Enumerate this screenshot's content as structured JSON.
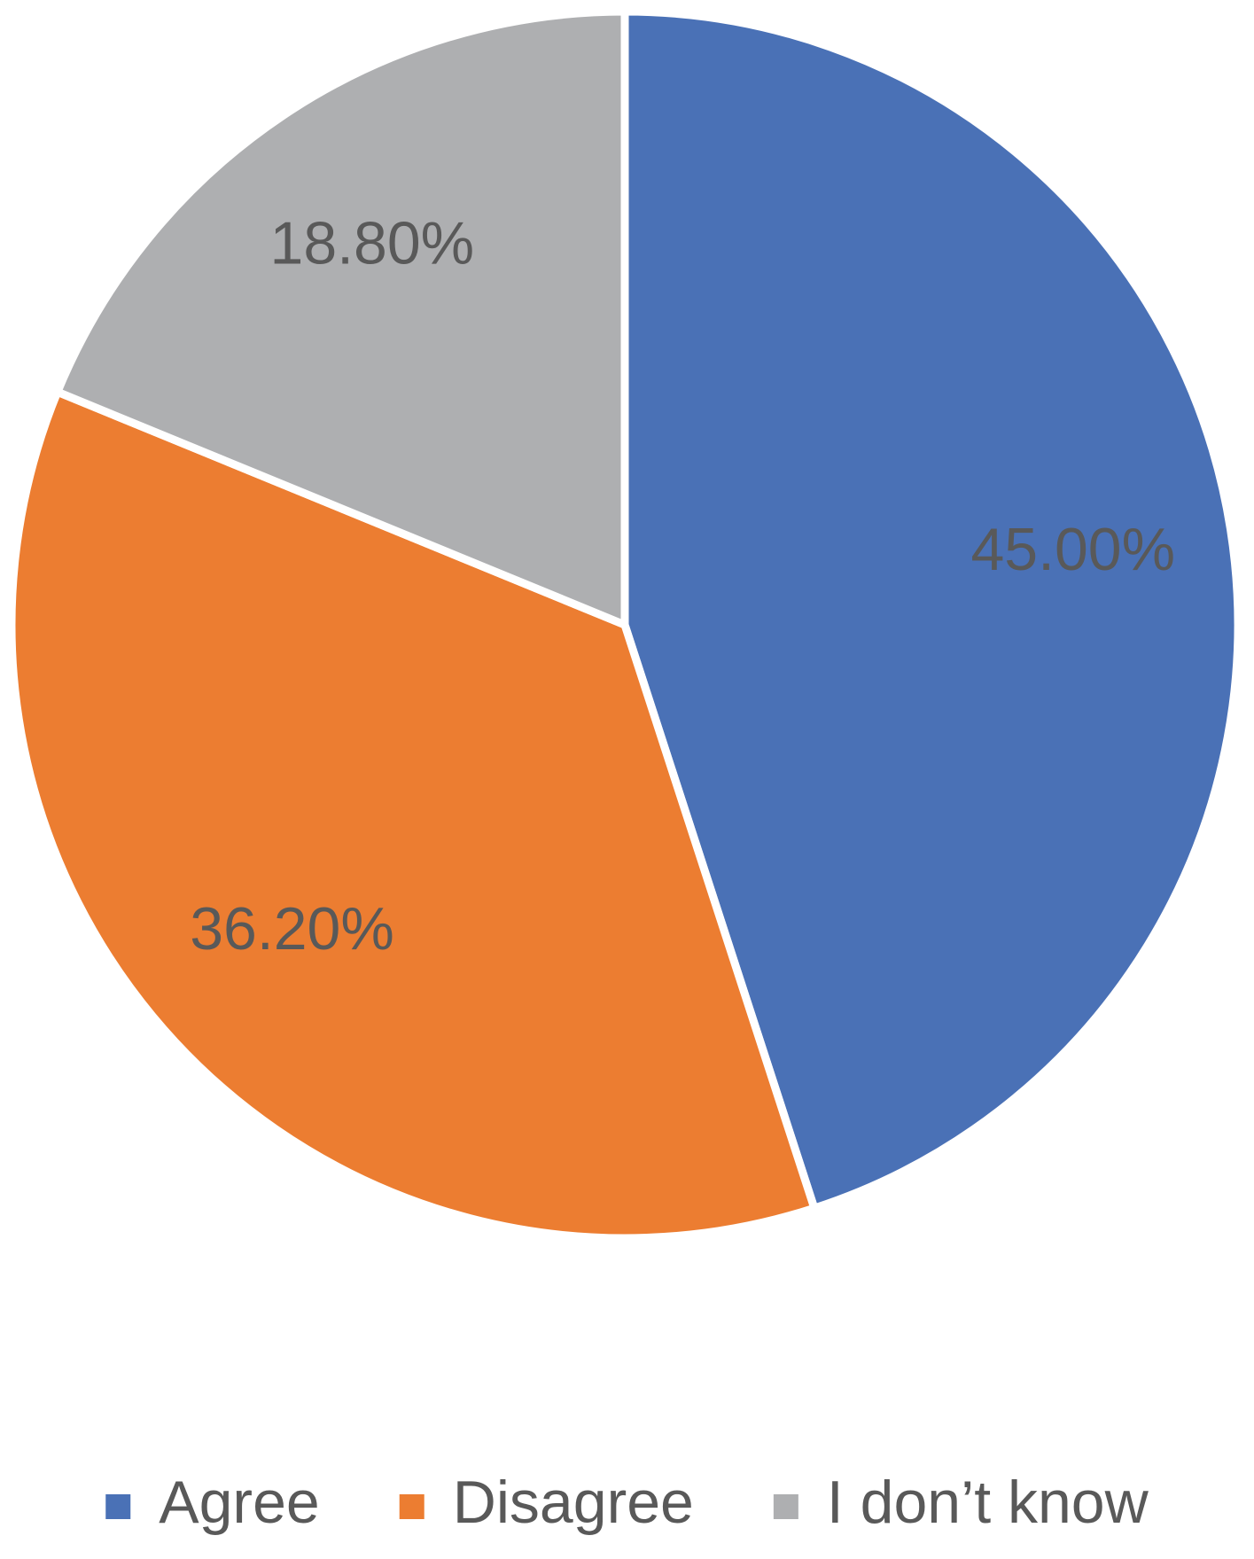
{
  "chart_data": {
    "type": "pie",
    "categories": [
      "Agree",
      "Disagree",
      "I don’t know"
    ],
    "values": [
      45,
      36.2,
      18.8
    ],
    "value_labels": [
      "45.00%",
      "36.20%",
      "18.80%"
    ],
    "colors": [
      "#4a71b6",
      "#ec7d31",
      "#aeafb1"
    ],
    "legend": "bottom"
  }
}
